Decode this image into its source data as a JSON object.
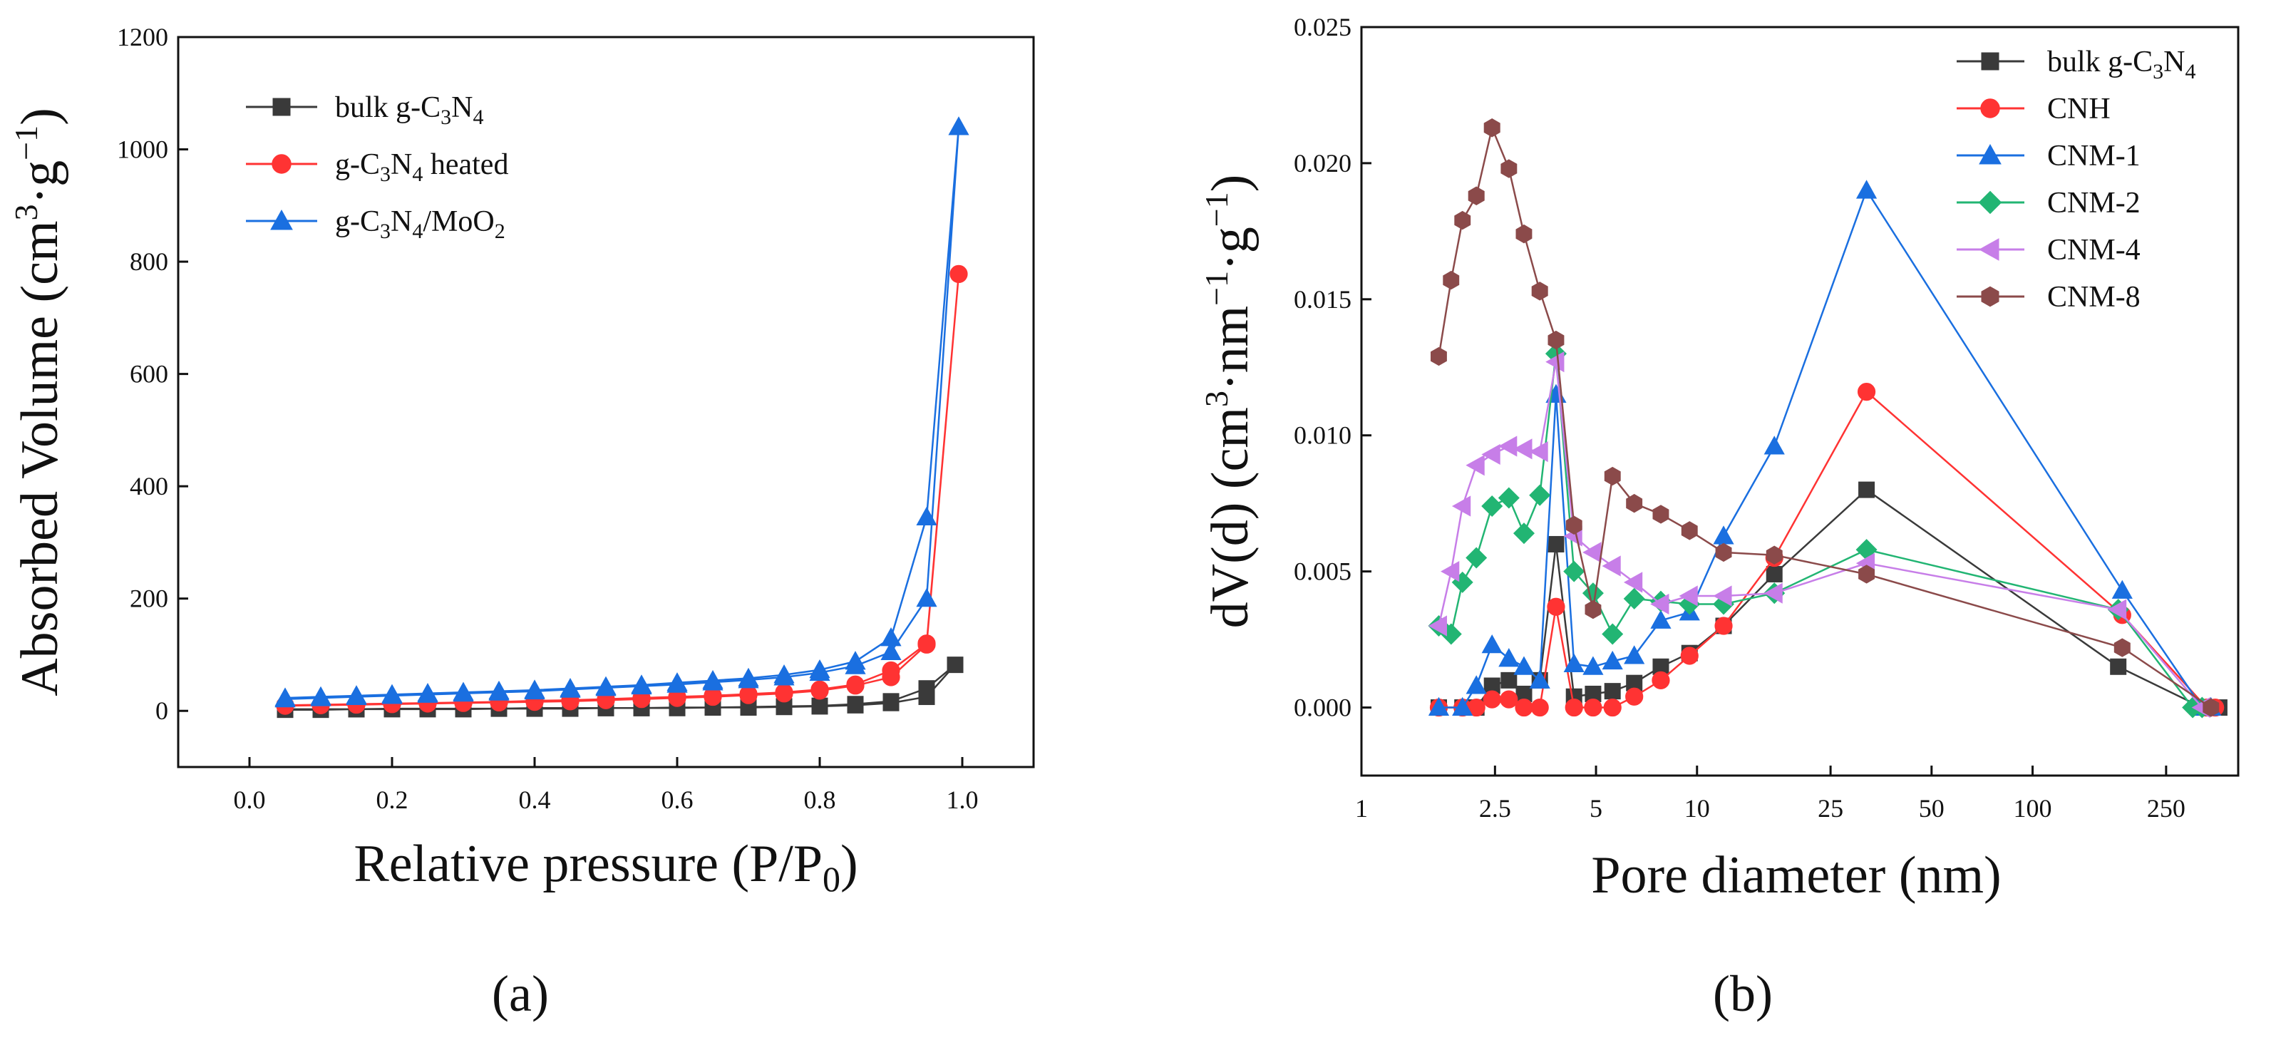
{
  "chart_data": [
    {
      "type": "line",
      "panel_label": "(a)",
      "xlabel": "Relative pressure (P/P0)",
      "ylabel": "Absorbed Volume (cm3·g−1)",
      "xlim": [
        -0.1,
        1.1
      ],
      "ylim": [
        -100,
        1200
      ],
      "xticks": [
        0.0,
        0.2,
        0.4,
        0.6,
        0.8,
        1.0
      ],
      "xtick_labels": [
        "0.0",
        "0.2",
        "0.4",
        "0.6",
        "0.8",
        "1.0"
      ],
      "yticks": [
        0,
        200,
        400,
        600,
        800,
        1000,
        1200
      ],
      "ytick_labels": [
        "0",
        "200",
        "400",
        "600",
        "800",
        "1000",
        "1200"
      ],
      "legend_position": "top-left",
      "series": [
        {
          "name": "bulk g-C3N4",
          "color": "#3a3a3a",
          "marker": "square",
          "x": [
            0.05,
            0.1,
            0.15,
            0.2,
            0.25,
            0.3,
            0.35,
            0.4,
            0.45,
            0.5,
            0.55,
            0.6,
            0.65,
            0.7,
            0.75,
            0.8,
            0.85,
            0.9,
            0.95,
            0.99
          ],
          "y": [
            3,
            3,
            3,
            4,
            4,
            4,
            4,
            5,
            5,
            5,
            5,
            6,
            6,
            7,
            8,
            9,
            12,
            17,
            40,
            82
          ],
          "x2": [
            0.95,
            0.9,
            0.85,
            0.8,
            0.75,
            0.7,
            0.65,
            0.6,
            0.55,
            0.5,
            0.45,
            0.4,
            0.35,
            0.3,
            0.25,
            0.2,
            0.15,
            0.1,
            0.05
          ],
          "y2": [
            25,
            14,
            10,
            8,
            7,
            6,
            6,
            5,
            5,
            5,
            4,
            4,
            4,
            3,
            3,
            3,
            3,
            2,
            2
          ]
        },
        {
          "name": "g-C3N4 heated",
          "color": "#ff3333",
          "marker": "circle",
          "x": [
            0.05,
            0.1,
            0.15,
            0.2,
            0.25,
            0.3,
            0.35,
            0.4,
            0.45,
            0.5,
            0.55,
            0.6,
            0.65,
            0.7,
            0.75,
            0.8,
            0.85,
            0.9,
            0.95,
            0.995
          ],
          "y": [
            10,
            11,
            12,
            13,
            14,
            15,
            16,
            18,
            19,
            21,
            23,
            25,
            27,
            30,
            33,
            38,
            47,
            72,
            120,
            778
          ],
          "x2": [
            0.95,
            0.9,
            0.85,
            0.8,
            0.75,
            0.7,
            0.65,
            0.6,
            0.55,
            0.5,
            0.45,
            0.4,
            0.35,
            0.3,
            0.25,
            0.2,
            0.15,
            0.1,
            0.05
          ],
          "y2": [
            118,
            60,
            45,
            36,
            31,
            28,
            25,
            23,
            21,
            19,
            17,
            16,
            15,
            14,
            13,
            12,
            11,
            10,
            9
          ]
        },
        {
          "name": "g-C3N4/MoO2",
          "color": "#1a6fe0",
          "marker": "triangle",
          "x": [
            0.05,
            0.1,
            0.15,
            0.2,
            0.25,
            0.3,
            0.35,
            0.4,
            0.45,
            0.5,
            0.55,
            0.6,
            0.65,
            0.7,
            0.75,
            0.8,
            0.85,
            0.9,
            0.95,
            0.995
          ],
          "y": [
            23,
            25,
            27,
            29,
            31,
            33,
            35,
            37,
            40,
            43,
            46,
            50,
            54,
            58,
            64,
            73,
            88,
            130,
            345,
            1040
          ],
          "x2": [
            0.95,
            0.9,
            0.85,
            0.8,
            0.75,
            0.7,
            0.65,
            0.6,
            0.55,
            0.5,
            0.45,
            0.4,
            0.35,
            0.3,
            0.25,
            0.2,
            0.15,
            0.1,
            0.05
          ],
          "y2": [
            200,
            105,
            80,
            68,
            60,
            55,
            51,
            47,
            44,
            41,
            38,
            35,
            33,
            31,
            29,
            27,
            25,
            23,
            21
          ]
        }
      ]
    },
    {
      "type": "line",
      "panel_label": "(b)",
      "xlabel": "Pore diameter (nm)",
      "ylabel": "dV(d) (cm3·nm−1·g−1)",
      "xscale": "log",
      "xlim": [
        1,
        410
      ],
      "ylim": [
        -0.0025,
        0.025
      ],
      "xticks": [
        1,
        2.5,
        5,
        10,
        25,
        50,
        100,
        250
      ],
      "xtick_labels": [
        "1",
        "2.5",
        "5",
        "10",
        "25",
        "50",
        "100",
        "250"
      ],
      "yticks": [
        0.0,
        0.005,
        0.01,
        0.015,
        0.02,
        0.025
      ],
      "ytick_labels": [
        "0.000",
        "0.005",
        "0.010",
        "0.015",
        "0.020",
        "0.025"
      ],
      "legend_position": "top-right",
      "series": [
        {
          "name": "bulk g-C3N4",
          "color": "#3a3a3a",
          "marker": "square",
          "x": [
            1.7,
            2.0,
            2.2,
            2.45,
            2.75,
            3.05,
            3.4,
            3.8,
            4.3,
            4.9,
            5.6,
            6.5,
            7.8,
            9.5,
            12,
            17,
            32,
            180,
            320,
            360
          ],
          "y": [
            0,
            0,
            0,
            0.0008,
            0.001,
            0.0005,
            0.001,
            0.006,
            0.0004,
            0.0005,
            0.0006,
            0.0009,
            0.0015,
            0.002,
            0.003,
            0.0049,
            0.008,
            0.0015,
            0,
            0
          ]
        },
        {
          "name": "CNH",
          "color": "#ff3333",
          "marker": "circle",
          "x": [
            1.7,
            2.0,
            2.2,
            2.45,
            2.75,
            3.05,
            3.4,
            3.8,
            4.3,
            4.9,
            5.6,
            6.5,
            7.8,
            9.5,
            12,
            17,
            32,
            185,
            330,
            350
          ],
          "y": [
            0,
            0,
            0,
            0.0003,
            0.0003,
            0,
            0,
            0.0037,
            0,
            0,
            0,
            0.0004,
            0.001,
            0.0019,
            0.003,
            0.0055,
            0.0116,
            0.0034,
            0,
            0
          ]
        },
        {
          "name": "CNM-1",
          "color": "#1a6fe0",
          "marker": "triangle",
          "x": [
            1.7,
            2.0,
            2.2,
            2.45,
            2.75,
            3.05,
            3.4,
            3.8,
            4.3,
            4.9,
            5.6,
            6.5,
            7.8,
            9.5,
            12,
            17,
            32,
            185,
            320,
            340
          ],
          "y": [
            0,
            0,
            0.0008,
            0.0023,
            0.0018,
            0.0015,
            0.001,
            0.0115,
            0.0016,
            0.0015,
            0.0017,
            0.0019,
            0.0032,
            0.0035,
            0.0063,
            0.0096,
            0.019,
            0.0043,
            0,
            0
          ]
        },
        {
          "name": "CNM-2",
          "color": "#22b573",
          "marker": "diamond",
          "x": [
            1.7,
            1.85,
            2.0,
            2.2,
            2.45,
            2.75,
            3.05,
            3.4,
            3.8,
            4.3,
            4.9,
            5.6,
            6.5,
            7.8,
            9.5,
            12,
            17,
            32,
            180,
            300,
            320
          ],
          "y": [
            0.003,
            0.0027,
            0.0046,
            0.0055,
            0.0074,
            0.0077,
            0.0064,
            0.0078,
            0.013,
            0.005,
            0.0042,
            0.0027,
            0.004,
            0.0039,
            0.0038,
            0.0038,
            0.0042,
            0.0058,
            0.0036,
            0,
            0
          ]
        },
        {
          "name": "CNM-4",
          "color": "#c77ee8",
          "marker": "triangle-left",
          "x": [
            1.7,
            1.85,
            2.0,
            2.2,
            2.45,
            2.75,
            3.05,
            3.4,
            3.8,
            4.3,
            4.9,
            5.6,
            6.5,
            7.8,
            9.5,
            12,
            17,
            32,
            180,
            320
          ],
          "y": [
            0.003,
            0.005,
            0.0074,
            0.0089,
            0.0093,
            0.0096,
            0.0095,
            0.0094,
            0.0127,
            0.0063,
            0.0057,
            0.0052,
            0.0046,
            0.0038,
            0.0041,
            0.0041,
            0.0042,
            0.0053,
            0.0036,
            0
          ]
        },
        {
          "name": "CNM-8",
          "color": "#8b4a4a",
          "marker": "hexagon",
          "x": [
            1.7,
            1.85,
            2.0,
            2.2,
            2.45,
            2.75,
            3.05,
            3.4,
            3.8,
            4.3,
            4.9,
            5.6,
            6.5,
            7.8,
            9.5,
            12,
            17,
            32,
            185,
            340
          ],
          "y": [
            0.0129,
            0.0157,
            0.0179,
            0.0188,
            0.0213,
            0.0198,
            0.0174,
            0.0153,
            0.0135,
            0.0067,
            0.0036,
            0.0085,
            0.0075,
            0.0071,
            0.0065,
            0.0057,
            0.0056,
            0.0049,
            0.0022,
            0
          ]
        }
      ]
    }
  ]
}
